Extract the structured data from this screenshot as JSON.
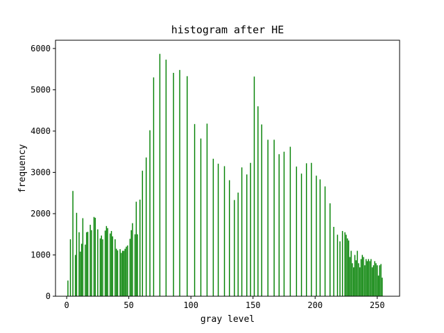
{
  "chart_data": {
    "type": "bar",
    "title": "histogram after HE",
    "xlabel": "gray level",
    "ylabel": "frequency",
    "xlim": [
      -9,
      268
    ],
    "ylim": [
      0,
      6200
    ],
    "xticks": [
      0,
      50,
      100,
      150,
      200,
      250
    ],
    "yticks": [
      0,
      1000,
      2000,
      3000,
      4000,
      5000,
      6000
    ],
    "grid": false,
    "bar_color": "#008000",
    "series": [
      {
        "x": [
          1,
          3,
          5,
          7,
          8,
          10,
          11,
          12,
          13,
          15,
          16,
          17,
          19,
          20,
          22,
          23,
          25,
          27,
          28,
          29,
          31,
          32,
          33,
          35,
          36,
          37,
          39,
          40,
          41,
          43,
          44,
          45,
          46,
          47,
          48,
          49,
          51,
          52,
          53,
          55,
          56,
          57,
          59,
          61,
          64,
          67,
          70,
          75,
          80,
          86,
          91,
          97,
          103,
          108,
          113,
          118,
          122,
          127,
          131,
          135,
          138,
          141,
          145,
          148,
          151,
          154,
          157,
          162,
          167,
          171,
          175,
          180,
          185,
          189,
          193,
          197,
          201,
          204,
          208,
          212,
          215,
          218,
          220,
          222,
          224,
          225,
          226,
          227,
          228,
          229,
          230,
          231,
          232,
          233,
          234,
          235,
          236,
          237,
          238,
          239,
          240,
          241,
          242,
          243,
          244,
          245,
          246,
          247,
          248,
          249,
          250,
          251,
          252,
          253,
          254
        ],
        "values": [
          380,
          1380,
          2550,
          1000,
          2020,
          1550,
          1080,
          1270,
          1890,
          1250,
          1550,
          1560,
          1730,
          1600,
          1920,
          1900,
          1620,
          1400,
          1470,
          1380,
          1590,
          1700,
          1650,
          1520,
          1580,
          1450,
          1380,
          1150,
          1110,
          1140,
          1050,
          1100,
          1100,
          1150,
          1200,
          1230,
          1390,
          1600,
          1770,
          1500,
          2290,
          1500,
          2340,
          3040,
          3360,
          4020,
          5300,
          5870,
          5730,
          5410,
          5480,
          5330,
          4170,
          3820,
          4180,
          3330,
          3210,
          3150,
          2810,
          2330,
          2510,
          3120,
          2950,
          3230,
          5320,
          4600,
          4160,
          3790,
          3790,
          3440,
          3500,
          3620,
          3140,
          2970,
          3220,
          3230,
          2920,
          2830,
          2660,
          2250,
          1680,
          1490,
          1330,
          1580,
          1550,
          1490,
          1400,
          1350,
          950,
          1100,
          800,
          700,
          1000,
          870,
          1100,
          800,
          700,
          900,
          1000,
          950,
          750,
          900,
          850,
          900,
          850,
          900,
          700,
          750,
          850,
          800,
          750,
          500,
          750,
          780,
          450
        ]
      }
    ]
  }
}
